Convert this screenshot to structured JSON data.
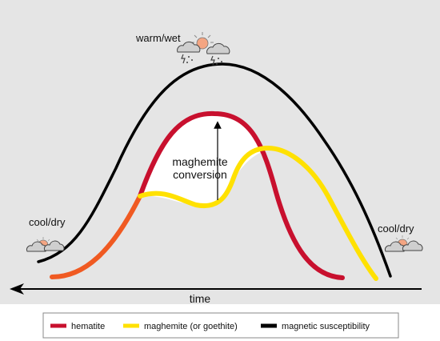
{
  "labels": {
    "top_state": "warm/wet",
    "left_state": "cool/dry",
    "right_state": "cool/dry",
    "annotation_line1": "maghemite",
    "annotation_line2": "conversion",
    "axis": "time"
  },
  "legend": {
    "items": [
      {
        "label": "hematite",
        "color": "#c8102e"
      },
      {
        "label": "maghemite (or goethite)",
        "color": "#ffe100"
      },
      {
        "label": "magnetic susceptibility",
        "color": "#000000"
      }
    ]
  },
  "colors": {
    "panel_background": "#e5e5e5",
    "hematite_early": "#f05a22",
    "hematite": "#c8102e",
    "maghemite": "#ffe100",
    "magnetic_susceptibility": "#000000",
    "sun": "#f4a582"
  },
  "icons": {
    "top": "storm-cloud-sun-icon",
    "left": "cloud-sun-icon",
    "right": "cloud-sun-icon"
  }
}
